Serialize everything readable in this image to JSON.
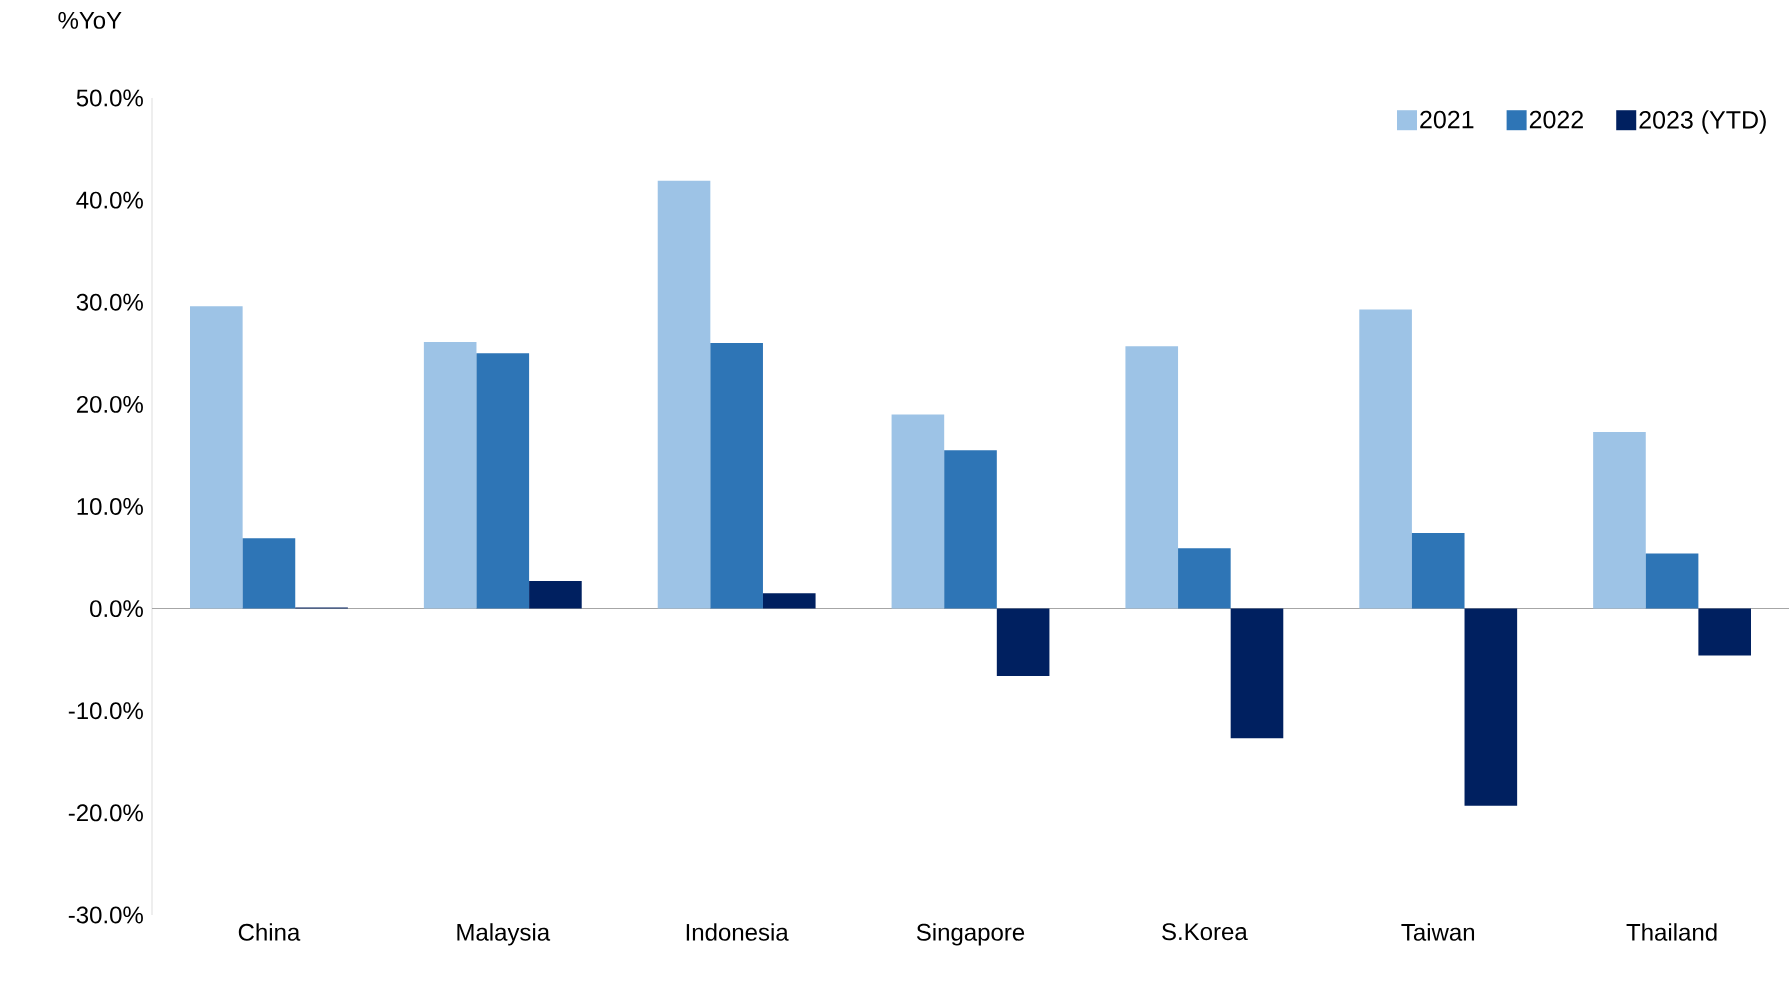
{
  "chart_data": {
    "type": "bar",
    "ylabel": "%YoY",
    "categories": [
      "China",
      "Malaysia",
      "Indonesia",
      "Singapore",
      "S.Korea",
      "Taiwan",
      "Thailand"
    ],
    "series": [
      {
        "name": "2021",
        "color": "#9dc3e6",
        "values": [
          29.6,
          26.1,
          41.9,
          19.0,
          25.7,
          29.3,
          17.3
        ]
      },
      {
        "name": "2022",
        "color": "#2e75b6",
        "values": [
          6.9,
          25.0,
          26.0,
          15.5,
          5.9,
          7.4,
          5.4
        ]
      },
      {
        "name": "2023 (YTD)",
        "color": "#002060",
        "values": [
          0.1,
          2.7,
          1.5,
          -6.6,
          -12.7,
          -19.3,
          -4.6
        ]
      }
    ],
    "ylim": [
      -30,
      50
    ],
    "yticks": [
      {
        "value": -30,
        "label": "-30.0%"
      },
      {
        "value": -20,
        "label": "-20.0%"
      },
      {
        "value": -10,
        "label": "-10.0%"
      },
      {
        "value": 0,
        "label": "0.0%"
      },
      {
        "value": 10,
        "label": "10.0%"
      },
      {
        "value": 20,
        "label": "20.0%"
      },
      {
        "value": 30,
        "label": "30.0%"
      },
      {
        "value": 40,
        "label": "40.0%"
      },
      {
        "value": 50,
        "label": "50.0%"
      }
    ],
    "legend": "top right"
  }
}
